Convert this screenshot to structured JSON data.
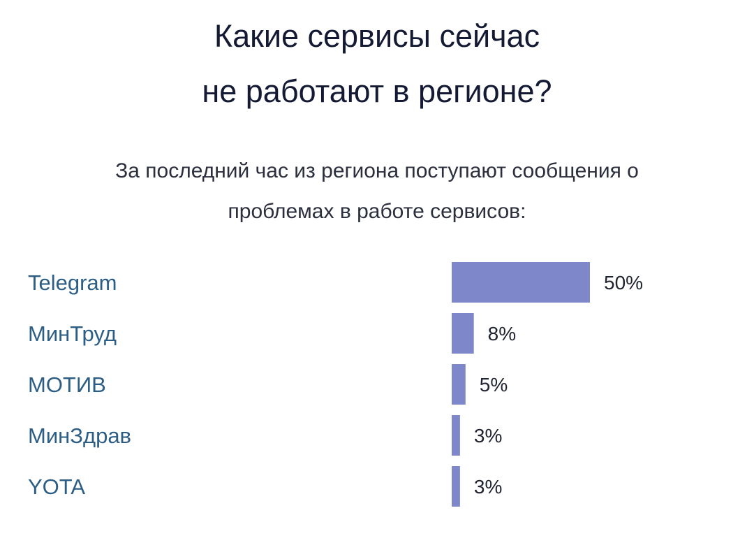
{
  "chart_data": {
    "type": "bar",
    "orientation": "horizontal",
    "title_lines": [
      "Какие сервисы сейчас",
      "не работают в регионе?"
    ],
    "subtitle_lines": [
      "За последний час из региона поступают сообщения о",
      "проблемах в работе сервисов:"
    ],
    "categories": [
      "Telegram",
      "МинТруд",
      "МОТИВ",
      "МинЗдрав",
      "YOTA"
    ],
    "values": [
      50,
      8,
      5,
      3,
      3
    ],
    "value_labels": [
      "50%",
      "8%",
      "5%",
      "3%",
      "3%"
    ],
    "unit": "%",
    "xlim": [
      0,
      50
    ],
    "grid": false,
    "legend": "none",
    "colors": {
      "bar": "#7f87cb",
      "category_text": "#2c5d84",
      "title_text": "#141a33"
    }
  }
}
